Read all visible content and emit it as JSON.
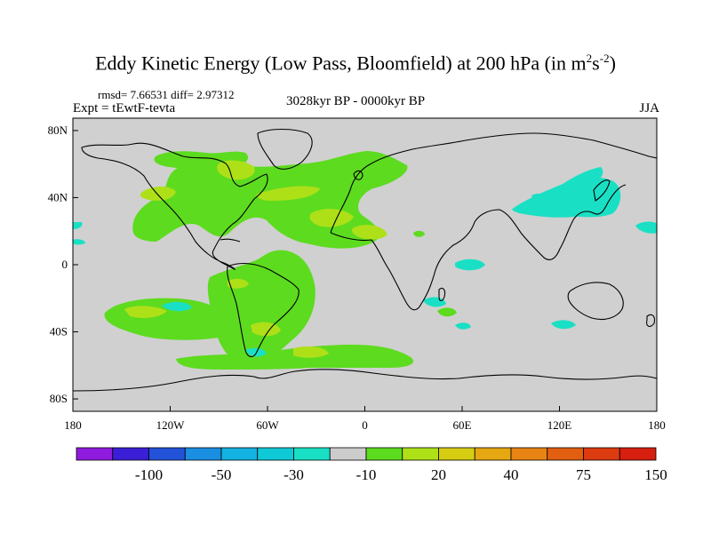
{
  "header": {
    "title": "Eddy Kinetic Energy (Low Pass, Bloomfield) at 200 hPa (in m",
    "unit_sup1": "2",
    "unit_mid": "s",
    "unit_sup2": "-2",
    "unit_end": ")",
    "stats": "rmsd= 7.66531 diff= 2.97312",
    "experiment": "Expt = tEwtF-tevta",
    "period": "3028kyr BP - 0000kyr BP",
    "season": "JJA"
  },
  "map": {
    "lat_ticks": [
      "80N",
      "40N",
      "0",
      "40S",
      "80S"
    ],
    "lat_values": [
      80,
      40,
      0,
      -40,
      -80
    ],
    "lon_ticks": [
      "180",
      "120W",
      "60W",
      "0",
      "60E",
      "120E",
      "180"
    ],
    "lon_values": [
      -180,
      -120,
      -60,
      0,
      60,
      120,
      180
    ],
    "colors": {
      "background": "#d0d0d0",
      "positive_low": "#5ddb1f",
      "positive_mid": "#aee018",
      "negative_low": "#19e0c4",
      "coast": "#000000"
    }
  },
  "colorbar": {
    "labels": [
      "-100",
      "-50",
      "-30",
      "-10",
      "20",
      "40",
      "75",
      "150"
    ],
    "colors": [
      "#8f1bdf",
      "#3a1fd6",
      "#2252d8",
      "#1a8ee0",
      "#13b2e0",
      "#10c9d6",
      "#19e0c4",
      "#cccccc",
      "#5ddb1f",
      "#aee018",
      "#d6cc12",
      "#e5a812",
      "#e88414",
      "#e25f12",
      "#dd3b10",
      "#d61f0f"
    ]
  }
}
